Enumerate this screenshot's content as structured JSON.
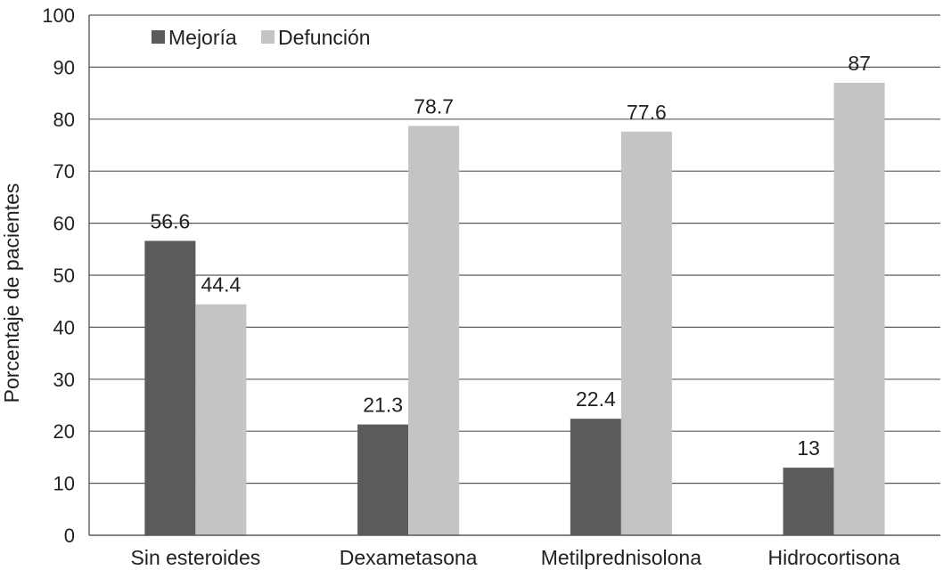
{
  "chart_data": {
    "type": "bar",
    "title": "",
    "xlabel": "",
    "ylabel": "Porcentaje de pacientes",
    "categories": [
      "Sin esteroides",
      "Dexametasona",
      "Metilprednisolona",
      "Hidrocortisona"
    ],
    "series": [
      {
        "name": "Mejoría",
        "color": "#5b5b5d",
        "values": [
          56.6,
          21.3,
          22.4,
          13
        ]
      },
      {
        "name": "Defunción",
        "color": "#c4c4c4",
        "values": [
          44.4,
          78.7,
          77.6,
          87
        ]
      }
    ],
    "data_labels": [
      [
        "56.6",
        "21.3",
        "22.4",
        "13"
      ],
      [
        "44.4",
        "78.7",
        "77.6",
        "87"
      ]
    ],
    "ylim": [
      0,
      100
    ],
    "yticks": [
      0,
      10,
      20,
      30,
      40,
      50,
      60,
      70,
      80,
      90,
      100
    ],
    "grid": true,
    "legend_position": "top-left"
  }
}
